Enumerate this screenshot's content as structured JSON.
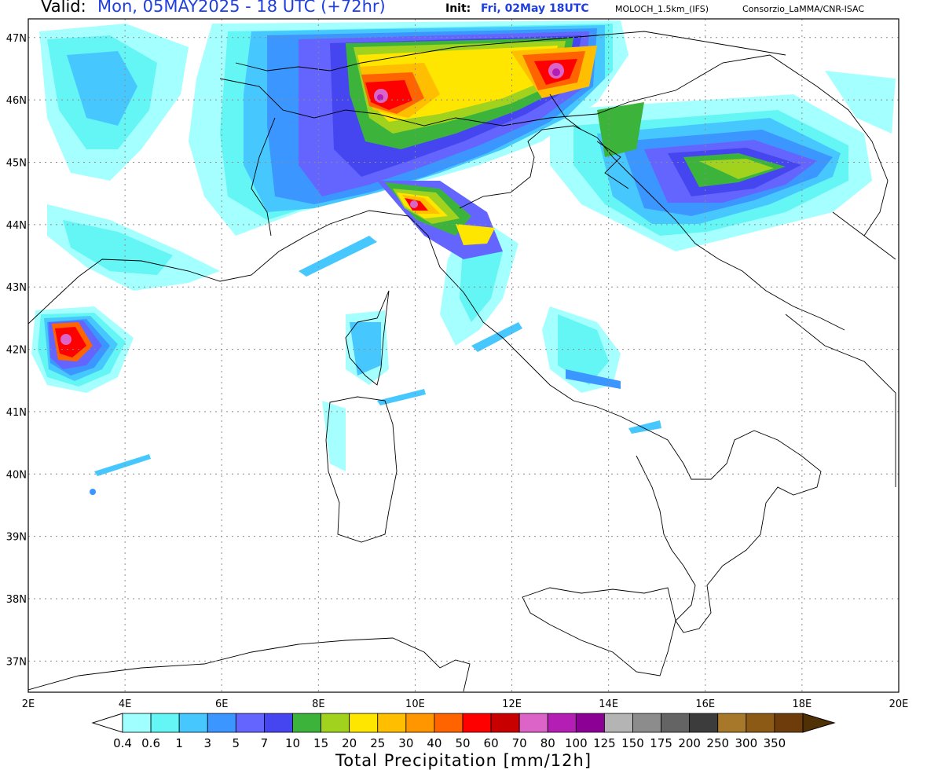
{
  "header": {
    "valid_label": "Valid:",
    "valid_value": "Mon, 05MAY2025 - 18 UTC (+72hr)",
    "init_label": "Init:",
    "init_value": "Fri, 02May 18UTC",
    "model": "MOLOCH_1.5km_(IFS)",
    "credit": "Consorzio_LaMMA/CNR-ISAC"
  },
  "map": {
    "lon_min": 2,
    "lon_max": 20,
    "lat_min": 36.5,
    "lat_max": 47.3,
    "lat_ticks": [
      "47N",
      "46N",
      "45N",
      "44N",
      "43N",
      "42N",
      "41N",
      "40N",
      "39N",
      "38N",
      "37N"
    ],
    "lon_ticks": [
      "2E",
      "4E",
      "6E",
      "8E",
      "10E",
      "12E",
      "14E",
      "16E",
      "18E",
      "20E"
    ]
  },
  "colorbar": {
    "title": "Total Precipitation [mm/12h]",
    "labels": [
      "0.4",
      "0.6",
      "1",
      "3",
      "5",
      "7",
      "10",
      "15",
      "20",
      "25",
      "30",
      "40",
      "50",
      "60",
      "70",
      "80",
      "100",
      "125",
      "150",
      "175",
      "200",
      "250",
      "300",
      "350"
    ],
    "colors": [
      "#a0ffff",
      "#64f5f5",
      "#46c8ff",
      "#3c96ff",
      "#6464ff",
      "#4646f0",
      "#3cb43c",
      "#a0d21e",
      "#ffe600",
      "#ffbe00",
      "#ff9600",
      "#ff6400",
      "#ff0000",
      "#c80000",
      "#dc64c8",
      "#b41eb4",
      "#8c0096",
      "#b4b4b4",
      "#8c8c8c",
      "#646464",
      "#3c3c3c",
      "#a8782a",
      "#8c5a14",
      "#6e3c0a",
      "#503005"
    ]
  },
  "colors": {
    "accent_blue": "#1f3fe0",
    "grid": "#8c8c8c"
  }
}
